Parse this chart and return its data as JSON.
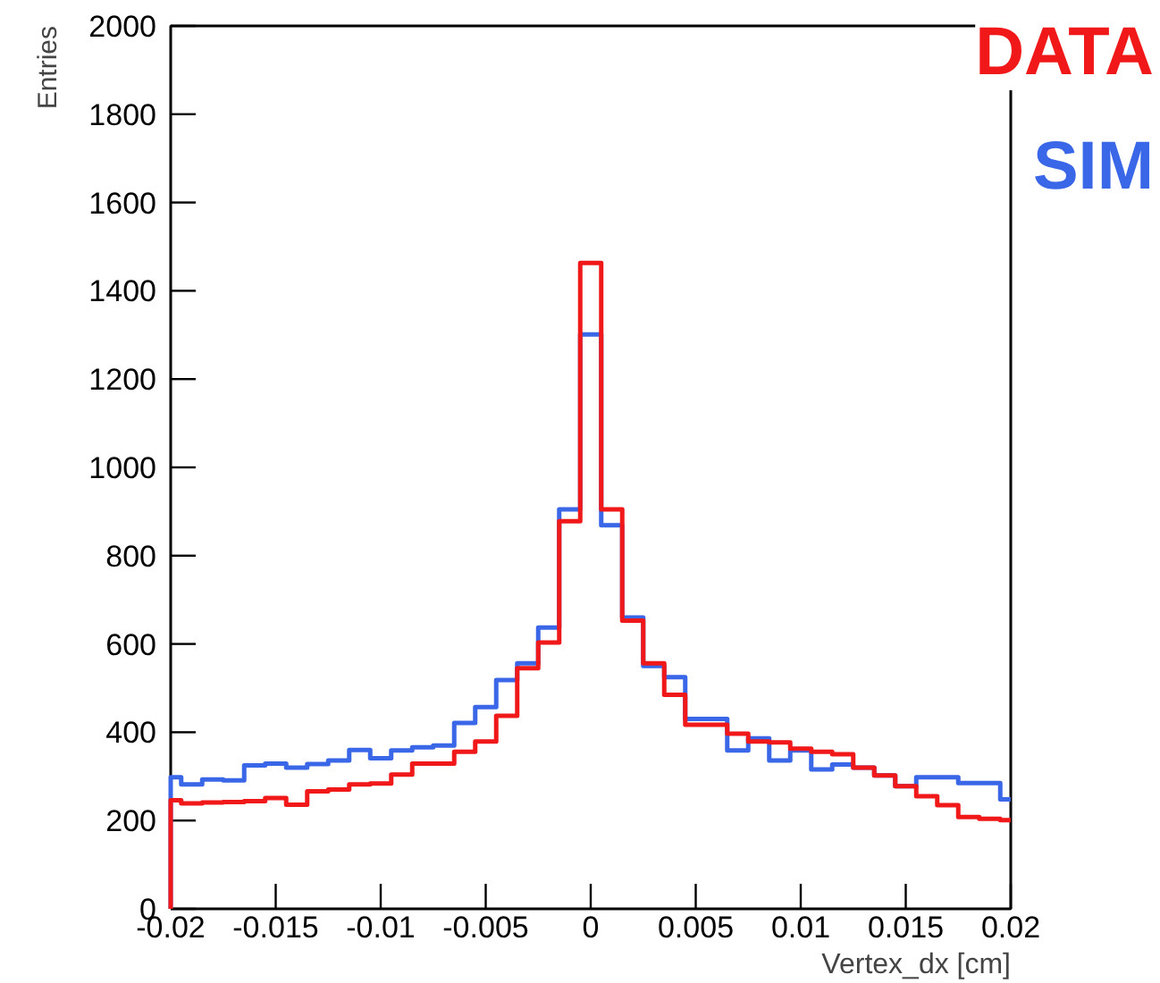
{
  "chart_data": {
    "type": "histogram",
    "xlabel": "Vertex_dx [cm]",
    "ylabel": "Entries",
    "bins": [
      -0.02,
      -0.0195,
      -0.0185,
      -0.0175,
      -0.0165,
      -0.0155,
      -0.0145,
      -0.0135,
      -0.0125,
      -0.0115,
      -0.0105,
      -0.0095,
      -0.0085,
      -0.0075,
      -0.0065,
      -0.0055,
      -0.0045,
      -0.0035,
      -0.0025,
      -0.0015,
      -0.0005,
      0.0005,
      0.0015,
      0.0025,
      0.0035,
      0.0045,
      0.0055,
      0.0065,
      0.0075,
      0.0085,
      0.0095,
      0.0105,
      0.0115,
      0.0125,
      0.0135,
      0.0145,
      0.0155,
      0.0165,
      0.0175,
      0.0185,
      0.0195,
      0.02
    ],
    "series": [
      {
        "name": "SIM",
        "color": "#3a66e8",
        "values": [
          298,
          282,
          293,
          291,
          325,
          329,
          320,
          328,
          336,
          360,
          341,
          359,
          366,
          370,
          421,
          457,
          518,
          556,
          637,
          905,
          1301,
          869,
          660,
          550,
          525,
          430,
          430,
          359,
          386,
          336,
          359,
          316,
          327,
          320,
          302,
          278,
          298,
          298,
          285,
          285,
          248
        ]
      },
      {
        "name": "DATA",
        "color": "#f01818",
        "values": [
          246,
          239,
          241,
          242,
          244,
          251,
          236,
          266,
          270,
          282,
          284,
          304,
          329,
          329,
          356,
          379,
          437,
          545,
          603,
          878,
          1463,
          905,
          653,
          556,
          485,
          417,
          417,
          397,
          379,
          377,
          363,
          356,
          350,
          320,
          302,
          278,
          255,
          235,
          208,
          204,
          201
        ]
      }
    ],
    "xlim": [
      -0.02,
      0.02
    ],
    "ylim": [
      0,
      2000
    ],
    "xticks": [
      -0.02,
      -0.015,
      -0.01,
      -0.005,
      0,
      0.005,
      0.01,
      0.015,
      0.02
    ],
    "yticks": [
      0,
      200,
      400,
      600,
      800,
      1000,
      1200,
      1400,
      1600,
      1800,
      2000
    ],
    "grid": false,
    "legend": "top right"
  }
}
